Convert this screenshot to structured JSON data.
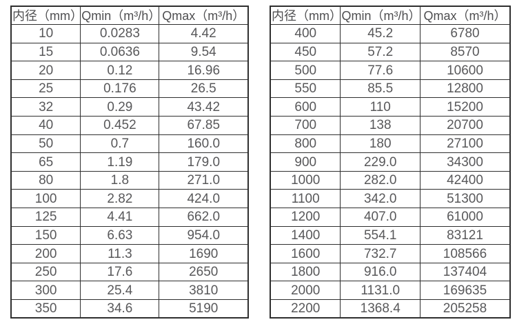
{
  "colors": {
    "background": "#ffffff",
    "border": "#2e2e2e",
    "text": "#58585a"
  },
  "tables": [
    {
      "name": "flow-table-left",
      "headers": [
        "内径（mm）",
        "Qmin（m³/h）",
        "Qmax（m³/h）"
      ],
      "rows": [
        [
          "10",
          "0.0283",
          "4.42"
        ],
        [
          "15",
          "0.0636",
          "9.54"
        ],
        [
          "20",
          "0.12",
          "16.96"
        ],
        [
          "25",
          "0.176",
          "26.5"
        ],
        [
          "32",
          "0.29",
          "43.42"
        ],
        [
          "40",
          "0.452",
          "67.85"
        ],
        [
          "50",
          "0.7",
          "160.0"
        ],
        [
          "65",
          "1.19",
          "179.0"
        ],
        [
          "80",
          "1.8",
          "271.0"
        ],
        [
          "100",
          "2.82",
          "424.0"
        ],
        [
          "125",
          "4.41",
          "662.0"
        ],
        [
          "150",
          "6.63",
          "954.0"
        ],
        [
          "200",
          "11.3",
          "1690"
        ],
        [
          "250",
          "17.6",
          "2650"
        ],
        [
          "300",
          "25.4",
          "3810"
        ],
        [
          "350",
          "34.6",
          "5190"
        ]
      ]
    },
    {
      "name": "flow-table-right",
      "headers": [
        "内径（mm）",
        "Qmin（m³/h）",
        "Qmax（m³/h）"
      ],
      "rows": [
        [
          "400",
          "45.2",
          "6780"
        ],
        [
          "450",
          "57.2",
          "8570"
        ],
        [
          "500",
          "77.6",
          "10600"
        ],
        [
          "550",
          "85.5",
          "12800"
        ],
        [
          "600",
          "110",
          "15200"
        ],
        [
          "700",
          "138",
          "20700"
        ],
        [
          "800",
          "180",
          "27100"
        ],
        [
          "900",
          "229.0",
          "34300"
        ],
        [
          "1000",
          "282.0",
          "42400"
        ],
        [
          "1100",
          "342.0",
          "51300"
        ],
        [
          "1200",
          "407.0",
          "61000"
        ],
        [
          "1400",
          "554.1",
          "83121"
        ],
        [
          "1600",
          "732.7",
          "108566"
        ],
        [
          "1800",
          "916.0",
          "137404"
        ],
        [
          "2000",
          "1131.0",
          "169635"
        ],
        [
          "2200",
          "1368.4",
          "205258"
        ]
      ]
    }
  ]
}
